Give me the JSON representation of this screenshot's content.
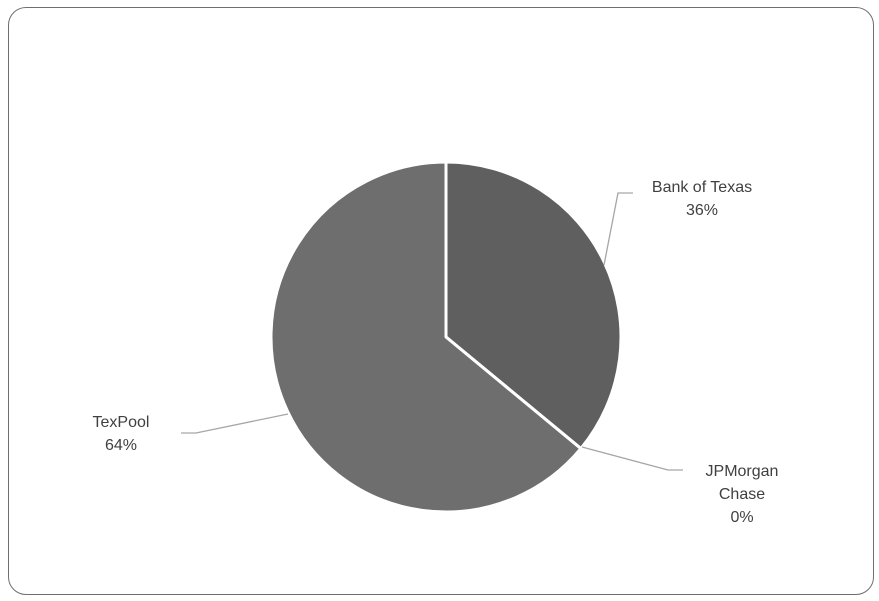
{
  "chart_data": {
    "type": "pie",
    "slices": [
      {
        "name": "Bank of Texas",
        "value": 36,
        "label_lines": [
          "Bank of Texas",
          "36%"
        ],
        "color": "#5f5f5f"
      },
      {
        "name": "JPMorgan Chase",
        "value": 0,
        "label_lines": [
          "JPMorgan",
          "Chase",
          "0%"
        ],
        "color": "#8a8a8a"
      },
      {
        "name": "TexPool",
        "value": 64,
        "label_lines": [
          "TexPool",
          "64%"
        ],
        "color": "#6e6e6e"
      }
    ],
    "start_angle": "12 o'clock",
    "direction": "clockwise",
    "slice_border_color": "#ffffff",
    "leader_line_color": "#a6a6a6",
    "label_color": "#404040",
    "legend": "none",
    "title": ""
  }
}
